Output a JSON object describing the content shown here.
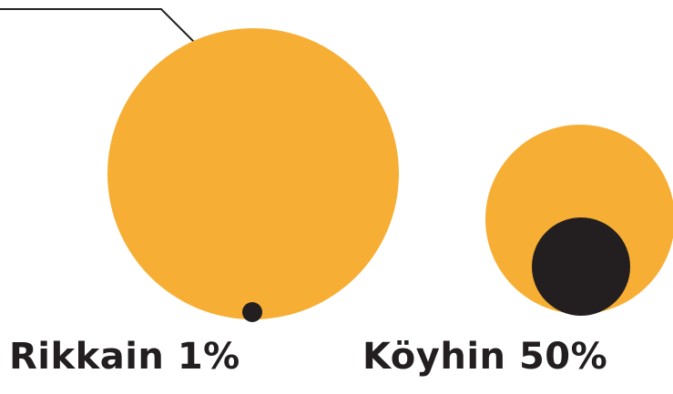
{
  "groups": [
    {
      "label": "Rikkain 1%"
    },
    {
      "label": "Köyhin 50%"
    }
  ],
  "colors": {
    "circle_fill": "#f7ae34",
    "dot_fill": "#231f20",
    "leader_line": "#231f20",
    "label_text": "#231f20"
  }
}
